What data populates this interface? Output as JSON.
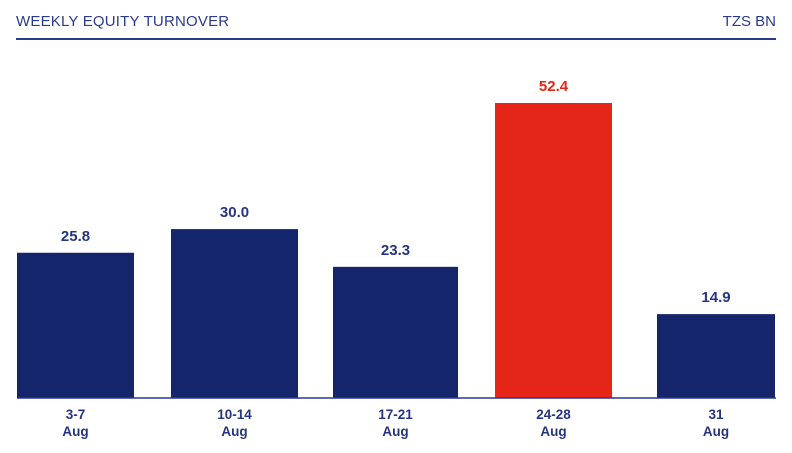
{
  "header": {
    "title": "WEEKLY EQUITY TURNOVER",
    "unit": "TZS BN"
  },
  "colors": {
    "bar": "#14256b",
    "highlight": "#e52517",
    "text": "#26357f",
    "axis": "#2a3a8c"
  },
  "chart_data": {
    "type": "bar",
    "title": "WEEKLY EQUITY TURNOVER",
    "ylabel": "TZS BN",
    "xlabel": "",
    "categories": [
      [
        "3-7",
        "Aug"
      ],
      [
        "10-14",
        "Aug"
      ],
      [
        "17-21",
        "Aug"
      ],
      [
        "24-28",
        "Aug"
      ],
      [
        "31",
        "Aug"
      ]
    ],
    "values": [
      25.8,
      30.0,
      23.3,
      52.4,
      14.9
    ],
    "value_labels": [
      "25.8",
      "30.0",
      "23.3",
      "52.4",
      "14.9"
    ],
    "highlight_index": 3,
    "ylim": [
      0,
      52.4
    ],
    "grid": false,
    "legend": "none"
  }
}
